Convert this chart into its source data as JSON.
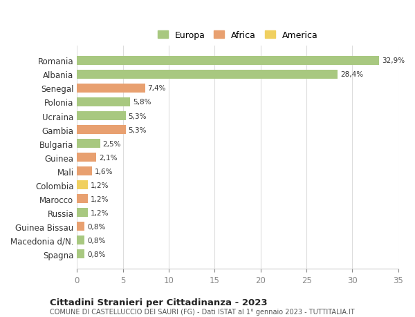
{
  "categories": [
    "Romania",
    "Albania",
    "Senegal",
    "Polonia",
    "Ucraina",
    "Gambia",
    "Bulgaria",
    "Guinea",
    "Mali",
    "Colombia",
    "Marocco",
    "Russia",
    "Guinea Bissau",
    "Macedonia d/N.",
    "Spagna"
  ],
  "values": [
    32.9,
    28.4,
    7.4,
    5.8,
    5.3,
    5.3,
    2.5,
    2.1,
    1.6,
    1.2,
    1.2,
    1.2,
    0.8,
    0.8,
    0.8
  ],
  "labels": [
    "32,9%",
    "28,4%",
    "7,4%",
    "5,8%",
    "5,3%",
    "5,3%",
    "2,5%",
    "2,1%",
    "1,6%",
    "1,2%",
    "1,2%",
    "1,2%",
    "0,8%",
    "0,8%",
    "0,8%"
  ],
  "colors": [
    "#a8c880",
    "#a8c880",
    "#e8a070",
    "#a8c880",
    "#a8c880",
    "#e8a070",
    "#a8c880",
    "#e8a070",
    "#e8a070",
    "#f0d060",
    "#e8a070",
    "#a8c880",
    "#e8a070",
    "#a8c880",
    "#a8c880"
  ],
  "legend": [
    {
      "label": "Europa",
      "color": "#a8c880"
    },
    {
      "label": "Africa",
      "color": "#e8a070"
    },
    {
      "label": "America",
      "color": "#f0d060"
    }
  ],
  "title": "Cittadini Stranieri per Cittadinanza - 2023",
  "subtitle": "COMUNE DI CASTELLUCCIO DEI SAURI (FG) - Dati ISTAT al 1° gennaio 2023 - TUTTITALIA.IT",
  "xlabel": "",
  "xlim": [
    0,
    35
  ],
  "xticks": [
    0,
    5,
    10,
    15,
    20,
    25,
    30,
    35
  ],
  "background_color": "#ffffff",
  "grid_color": "#dddddd",
  "bar_height": 0.65
}
